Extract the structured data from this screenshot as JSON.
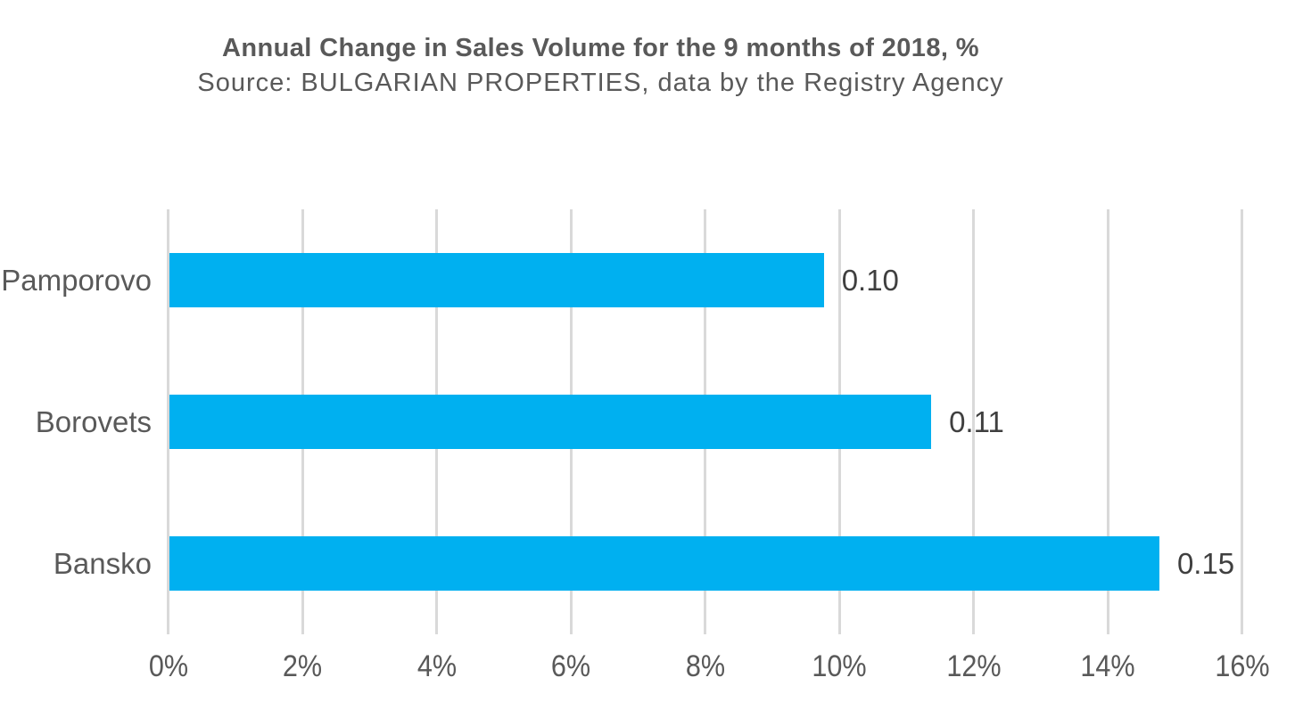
{
  "chart_data": {
    "type": "bar",
    "orientation": "horizontal",
    "title": "Annual Change in Sales Volume for the 9 months of 2018, %",
    "subtitle": "Source: BULGARIAN PROPERTIES, data by the Registry Agency",
    "categories": [
      "Pamporovo",
      "Borovets",
      "Bansko"
    ],
    "series": [
      {
        "name": "Annual change in sales volume",
        "values": [
          0.1,
          0.11,
          0.15
        ],
        "data_labels": [
          "0.10",
          "0.11",
          "0.15"
        ],
        "bar_extent_pct": [
          9.75,
          11.35,
          14.75
        ]
      }
    ],
    "xlabel": "",
    "ylabel": "",
    "x_axis": {
      "min": 0,
      "max": 16,
      "step": 2,
      "unit": "%",
      "tick_labels": [
        "0%",
        "2%",
        "4%",
        "6%",
        "8%",
        "10%",
        "12%",
        "14%",
        "16%"
      ]
    },
    "grid": true,
    "legend": false,
    "colors": {
      "bar": "#00B0F0",
      "gridline": "#D9D9D9",
      "text": "#595959",
      "data_label": "#3F3F3F",
      "background": "#FFFFFF"
    }
  }
}
